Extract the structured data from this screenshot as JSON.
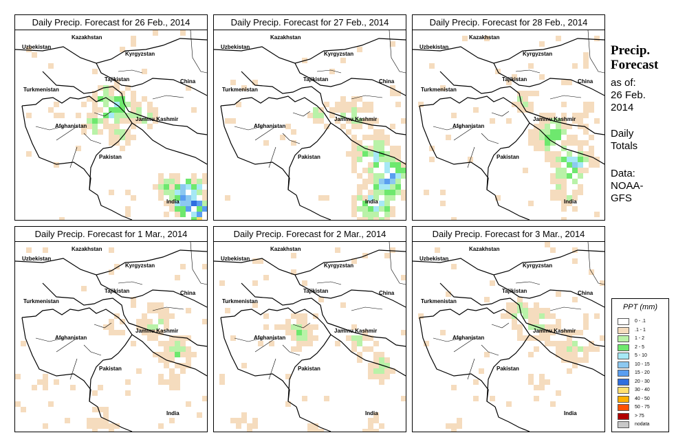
{
  "panels": [
    {
      "title": "Daily Precip. Forecast for  26 Feb., 2014"
    },
    {
      "title": "Daily Precip. Forecast for  27 Feb., 2014"
    },
    {
      "title": "Daily Precip. Forecast for  28 Feb., 2014"
    },
    {
      "title": "Daily Precip. Forecast for  1 Mar., 2014"
    },
    {
      "title": "Daily Precip. Forecast for  2 Mar., 2014"
    },
    {
      "title": "Daily Precip. Forecast for  3 Mar., 2014"
    }
  ],
  "map_labels": {
    "kazakhstan": "Kazakhstan",
    "uzbekistan": "Uzbekistan",
    "kyrgyzstan": "Kyrgyzstan",
    "tajikistan": "Tajikistan",
    "china": "China",
    "turkmenistan": "Turkmenistan",
    "afghanistan": "Afghanistan",
    "jammu_kashmir": "Jammu Kashmir",
    "pakistan": "Pakistan",
    "india": "India"
  },
  "sidebar": {
    "title_line1": "Precip.",
    "title_line2": "Forecast",
    "asof_line1": "as of:",
    "asof_line2": "26 Feb.",
    "asof_line3": "2014",
    "daily_line1": "Daily",
    "daily_line2": "Totals",
    "data_line1": "Data:",
    "data_line2": "NOAA-",
    "data_line3": "GFS"
  },
  "legend": {
    "title": "PPT (mm)",
    "items": [
      {
        "label": "0 - .1",
        "color": "#ffffff"
      },
      {
        "label": ".1 - 1",
        "color": "#f5dcbe"
      },
      {
        "label": "1 - 2",
        "color": "#b9f2a8"
      },
      {
        "label": "2 - 5",
        "color": "#6ee86e"
      },
      {
        "label": "5 - 10",
        "color": "#a6e8f5"
      },
      {
        "label": "10 - 15",
        "color": "#8cc8f0"
      },
      {
        "label": "15 - 20",
        "color": "#5a9ef0"
      },
      {
        "label": "20 - 30",
        "color": "#2f6ee0"
      },
      {
        "label": "30 - 40",
        "color": "#ffe070"
      },
      {
        "label": "40 - 50",
        "color": "#ffb000"
      },
      {
        "label": "50 - 75",
        "color": "#ff5000"
      },
      {
        "label": "> 75",
        "color": "#b00000"
      },
      {
        "label": "nodata",
        "color": "#c8c8c8"
      }
    ]
  }
}
